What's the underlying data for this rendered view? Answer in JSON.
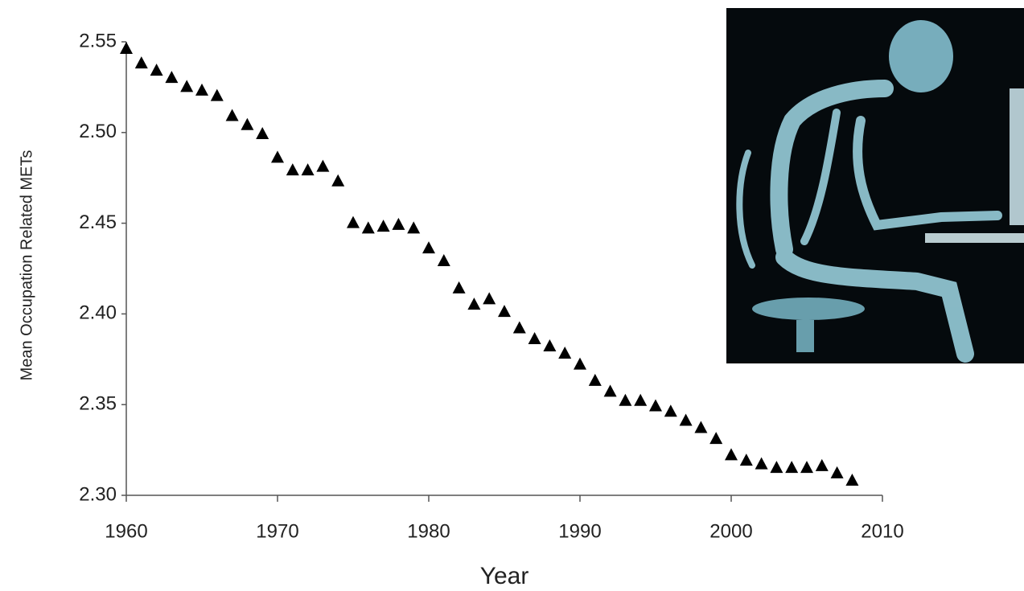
{
  "chart_data": {
    "type": "scatter",
    "x_label": "Year",
    "y_label": "Mean Occupation Related METs",
    "series": [
      {
        "color": "#000000",
        "x": [
          1960,
          1961,
          1962,
          1963,
          1964,
          1965,
          1966,
          1967,
          1968,
          1969,
          1970,
          1971,
          1972,
          1973,
          1974,
          1975,
          1976,
          1977,
          1978,
          1979,
          1980,
          1981,
          1982,
          1983,
          1984,
          1985,
          1986,
          1987,
          1988,
          1989,
          1990,
          1991,
          1992,
          1993,
          1994,
          1995,
          1996,
          1997,
          1998,
          1999,
          2000,
          2001,
          2002,
          2003,
          2004,
          2005,
          2006,
          2007,
          2008
        ],
        "values": [
          2.546,
          2.538,
          2.534,
          2.53,
          2.525,
          2.523,
          2.52,
          2.509,
          2.504,
          2.499,
          2.486,
          2.479,
          2.479,
          2.481,
          2.473,
          2.45,
          2.447,
          2.448,
          2.449,
          2.447,
          2.436,
          2.429,
          2.414,
          2.405,
          2.408,
          2.401,
          2.392,
          2.386,
          2.382,
          2.378,
          2.372,
          2.363,
          2.357,
          2.352,
          2.352,
          2.349,
          2.346,
          2.341,
          2.337,
          2.331,
          2.322,
          2.319,
          2.317,
          2.315,
          2.315,
          2.315,
          2.316,
          2.312,
          2.308
        ]
      }
    ],
    "xlim": [
      1960,
      2010
    ],
    "xticks": [
      1960,
      1970,
      1980,
      1990,
      2000,
      2010
    ],
    "ylim": [
      2.3,
      2.55
    ],
    "yticks": [
      {
        "value": 2.3,
        "label": "2.30"
      },
      2.35,
      {
        "value": 2.4,
        "label": "2.40"
      },
      2.45,
      {
        "value": 2.5,
        "label": "2.50"
      },
      2.55
    ],
    "grid": false
  }
}
